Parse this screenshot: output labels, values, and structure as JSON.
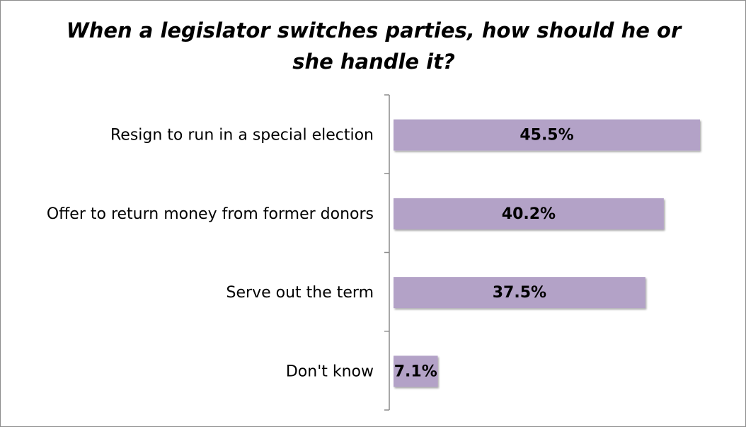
{
  "chart_data": {
    "type": "bar",
    "orientation": "horizontal",
    "title_lines": [
      "When a legislator switches parties, how should he or",
      "she handle it?"
    ],
    "categories": [
      "Resign to run in a special election",
      "Offer to return money from former donors",
      "Serve out the term",
      "Don't know"
    ],
    "values": [
      45.5,
      40.2,
      37.5,
      7.1
    ],
    "data_labels": [
      "45.5%",
      "40.2%",
      "37.5%",
      "7.1%"
    ],
    "xlim": [
      0,
      45.5
    ],
    "bar_color": "#b3a2c7",
    "grid": false,
    "legend": "none"
  }
}
